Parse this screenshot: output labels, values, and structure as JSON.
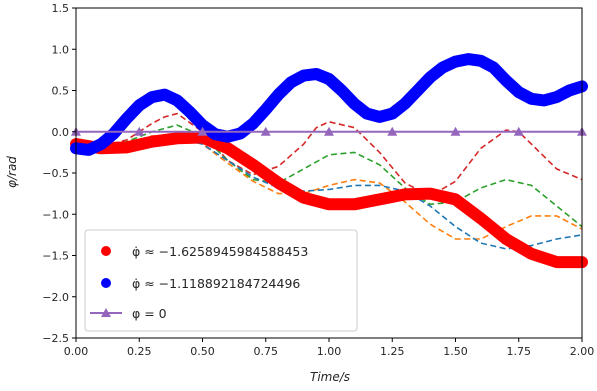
{
  "chart_data": {
    "type": "line",
    "xlabel": "Time/s",
    "ylabel": "φ/rad",
    "xlim": [
      0.0,
      2.0
    ],
    "ylim": [
      -2.5,
      1.5
    ],
    "grid": false,
    "legend_placement": "lower-left",
    "x_ticks": [
      "0.00",
      "0.25",
      "0.50",
      "0.75",
      "1.00",
      "1.25",
      "1.50",
      "1.75",
      "2.00"
    ],
    "y_ticks": [
      "1.5",
      "1.0",
      "0.5",
      "0.0",
      "−0.5",
      "−1.0",
      "−1.5",
      "−2.0",
      "−2.5"
    ],
    "legend": [
      {
        "label": "φ̇ ≈ −1.6258945984588453",
        "marker": "circle",
        "color": "#ff0000"
      },
      {
        "label": "φ̇ ≈ −1.118892184724496",
        "marker": "circle",
        "color": "#0000ff"
      },
      {
        "label": "φ = 0",
        "marker": "triangle-line",
        "color": "#9467bd"
      }
    ],
    "series": [
      {
        "color": "#ff0000",
        "style": "thick",
        "x": [
          0.0,
          0.1,
          0.2,
          0.3,
          0.4,
          0.5,
          0.6,
          0.7,
          0.8,
          0.9,
          1.0,
          1.1,
          1.2,
          1.3,
          1.4,
          1.5,
          1.6,
          1.7,
          1.8,
          1.9,
          2.0
        ],
        "values": [
          -0.15,
          -0.2,
          -0.19,
          -0.12,
          -0.08,
          -0.07,
          -0.2,
          -0.4,
          -0.62,
          -0.8,
          -0.88,
          -0.88,
          -0.82,
          -0.76,
          -0.75,
          -0.82,
          -1.05,
          -1.3,
          -1.48,
          -1.58,
          -1.58
        ]
      },
      {
        "color": "#0000ff",
        "style": "thick",
        "x": [
          0.0,
          0.05,
          0.1,
          0.15,
          0.2,
          0.25,
          0.3,
          0.35,
          0.4,
          0.45,
          0.5,
          0.55,
          0.6,
          0.65,
          0.7,
          0.75,
          0.8,
          0.85,
          0.9,
          0.95,
          1.0,
          1.05,
          1.1,
          1.15,
          1.2,
          1.25,
          1.3,
          1.35,
          1.4,
          1.45,
          1.5,
          1.55,
          1.6,
          1.65,
          1.7,
          1.75,
          1.8,
          1.85,
          1.9,
          1.95,
          2.0
        ],
        "values": [
          -0.2,
          -0.22,
          -0.15,
          -0.02,
          0.16,
          0.32,
          0.42,
          0.45,
          0.38,
          0.24,
          0.08,
          -0.03,
          -0.06,
          -0.02,
          0.1,
          0.27,
          0.45,
          0.6,
          0.68,
          0.7,
          0.64,
          0.5,
          0.34,
          0.22,
          0.18,
          0.22,
          0.34,
          0.5,
          0.66,
          0.78,
          0.85,
          0.88,
          0.86,
          0.78,
          0.62,
          0.48,
          0.4,
          0.38,
          0.42,
          0.5,
          0.55
        ]
      },
      {
        "color": "#9467bd",
        "style": "marker-line",
        "x": [
          0.0,
          0.25,
          0.5,
          0.75,
          1.0,
          1.25,
          1.5,
          1.75,
          2.0
        ],
        "values": [
          0,
          0,
          0,
          0,
          0,
          0,
          0,
          0,
          0
        ]
      },
      {
        "color": "#d62728",
        "style": "dashed",
        "x": [
          0.0,
          0.1,
          0.2,
          0.3,
          0.35,
          0.4,
          0.5,
          0.6,
          0.7,
          0.8,
          0.9,
          0.95,
          1.0,
          1.1,
          1.2,
          1.3,
          1.4,
          1.5,
          1.6,
          1.7,
          1.75,
          1.8,
          1.9,
          2.0
        ],
        "values": [
          -0.1,
          -0.18,
          -0.1,
          0.1,
          0.18,
          0.22,
          0.0,
          -0.35,
          -0.52,
          -0.42,
          -0.15,
          0.05,
          0.12,
          0.05,
          -0.25,
          -0.62,
          -0.78,
          -0.6,
          -0.2,
          0.02,
          0.0,
          -0.15,
          -0.45,
          -0.58
        ]
      },
      {
        "color": "#2ca02c",
        "style": "dashed",
        "x": [
          0.0,
          0.1,
          0.2,
          0.3,
          0.4,
          0.5,
          0.6,
          0.7,
          0.8,
          0.9,
          1.0,
          1.1,
          1.2,
          1.3,
          1.4,
          1.5,
          1.6,
          1.7,
          1.8,
          1.9,
          2.0
        ],
        "values": [
          -0.15,
          -0.2,
          -0.12,
          0.0,
          0.08,
          -0.05,
          -0.35,
          -0.58,
          -0.62,
          -0.45,
          -0.28,
          -0.25,
          -0.4,
          -0.68,
          -0.88,
          -0.85,
          -0.68,
          -0.58,
          -0.65,
          -0.9,
          -1.15
        ]
      },
      {
        "color": "#ff7f0e",
        "style": "dashed",
        "x": [
          0.0,
          0.1,
          0.2,
          0.3,
          0.4,
          0.5,
          0.6,
          0.7,
          0.8,
          0.9,
          1.0,
          1.1,
          1.2,
          1.3,
          1.4,
          1.5,
          1.6,
          1.7,
          1.8,
          1.9,
          2.0
        ],
        "values": [
          -0.15,
          -0.2,
          -0.15,
          -0.05,
          -0.05,
          -0.15,
          -0.38,
          -0.6,
          -0.75,
          -0.75,
          -0.65,
          -0.58,
          -0.62,
          -0.85,
          -1.12,
          -1.3,
          -1.3,
          -1.15,
          -1.02,
          -1.02,
          -1.18
        ]
      },
      {
        "color": "#1f77b4",
        "style": "dashed",
        "x": [
          0.0,
          0.1,
          0.2,
          0.3,
          0.4,
          0.5,
          0.6,
          0.7,
          0.8,
          0.9,
          1.0,
          1.1,
          1.2,
          1.3,
          1.4,
          1.5,
          1.6,
          1.7,
          1.8,
          1.9,
          2.0
        ],
        "values": [
          -0.15,
          -0.22,
          -0.2,
          -0.12,
          -0.08,
          -0.15,
          -0.35,
          -0.55,
          -0.68,
          -0.72,
          -0.7,
          -0.65,
          -0.65,
          -0.72,
          -0.9,
          -1.15,
          -1.35,
          -1.42,
          -1.38,
          -1.3,
          -1.25
        ]
      }
    ]
  }
}
